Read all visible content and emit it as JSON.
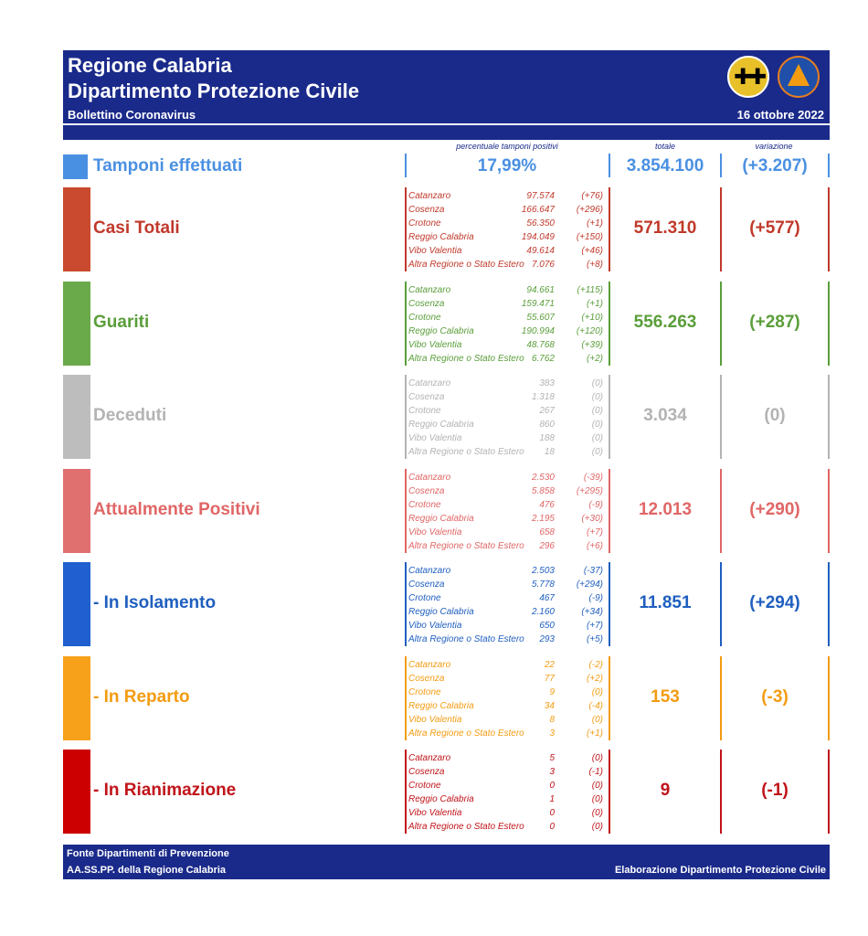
{
  "header": {
    "title_line1": "Regione Calabria",
    "title_line2": "Dipartimento Protezione Civile",
    "subtitle": "Bollettino Coronavirus",
    "date": "16 ottobre 2022",
    "logo_region_name": "regione-calabria-logo",
    "logo_pc_text": "PROTEZIONE CIVILE"
  },
  "column_headers": {
    "percent": "percentuale tamponi positivi",
    "total": "totale",
    "change": "variazione"
  },
  "tamponi": {
    "label": "Tamponi effettuati",
    "percent": "17,99%",
    "total": "3.854.100",
    "change": "(+3.207)",
    "color": "#4a90e2"
  },
  "rows": [
    {
      "label": "Casi Totali",
      "color": "#c0392b",
      "swatch": "#c94a2e",
      "total": "571.310",
      "change": "(+577)",
      "provinces": [
        {
          "name": "Catanzaro",
          "value": "97.574",
          "delta": "(+76)"
        },
        {
          "name": "Cosenza",
          "value": "166.647",
          "delta": "(+296)"
        },
        {
          "name": "Crotone",
          "value": "56.350",
          "delta": "(+1)"
        },
        {
          "name": "Reggio Calabria",
          "value": "194.049",
          "delta": "(+150)"
        },
        {
          "name": "Vibo Valentia",
          "value": "49.614",
          "delta": "(+46)"
        },
        {
          "name": "Altra Regione o Stato Estero",
          "value": "7.076",
          "delta": "(+8)"
        }
      ]
    },
    {
      "label": "Guariti",
      "color": "#5a9e3a",
      "swatch": "#6aaa4a",
      "total": "556.263",
      "change": "(+287)",
      "provinces": [
        {
          "name": "Catanzaro",
          "value": "94.661",
          "delta": "(+115)"
        },
        {
          "name": "Cosenza",
          "value": "159.471",
          "delta": "(+1)"
        },
        {
          "name": "Crotone",
          "value": "55.607",
          "delta": "(+10)"
        },
        {
          "name": "Reggio Calabria",
          "value": "190.994",
          "delta": "(+120)"
        },
        {
          "name": "Vibo Valentia",
          "value": "48.768",
          "delta": "(+39)"
        },
        {
          "name": "Altra Regione o Stato Estero",
          "value": "6.762",
          "delta": "(+2)"
        }
      ]
    },
    {
      "label": "Deceduti",
      "color": "#b3b3b3",
      "swatch": "#bdbdbd",
      "total": "3.034",
      "change": "(0)",
      "provinces": [
        {
          "name": "Catanzaro",
          "value": "383",
          "delta": "(0)"
        },
        {
          "name": "Cosenza",
          "value": "1.318",
          "delta": "(0)"
        },
        {
          "name": "Crotone",
          "value": "267",
          "delta": "(0)"
        },
        {
          "name": "Reggio Calabria",
          "value": "860",
          "delta": "(0)"
        },
        {
          "name": "Vibo Valentia",
          "value": "188",
          "delta": "(0)"
        },
        {
          "name": "Altra Regione o Stato Estero",
          "value": "18",
          "delta": "(0)"
        }
      ]
    },
    {
      "label": "Attualmente Positivi",
      "color": "#e06666",
      "swatch": "#e07070",
      "total": "12.013",
      "change": "(+290)",
      "provinces": [
        {
          "name": "Catanzaro",
          "value": "2.530",
          "delta": "(-39)"
        },
        {
          "name": "Cosenza",
          "value": "5.858",
          "delta": "(+295)"
        },
        {
          "name": "Crotone",
          "value": "476",
          "delta": "(-9)"
        },
        {
          "name": "Reggio Calabria",
          "value": "2.195",
          "delta": "(+30)"
        },
        {
          "name": "Vibo Valentia",
          "value": "658",
          "delta": "(+7)"
        },
        {
          "name": "Altra Regione o Stato Estero",
          "value": "296",
          "delta": "(+6)"
        }
      ]
    },
    {
      "label": " - In Isolamento",
      "color": "#1f5fbf",
      "swatch": "#1f5fcf",
      "total": "11.851",
      "change": "(+294)",
      "provinces": [
        {
          "name": "Catanzaro",
          "value": "2.503",
          "delta": "(-37)"
        },
        {
          "name": "Cosenza",
          "value": "5.778",
          "delta": "(+294)"
        },
        {
          "name": "Crotone",
          "value": "467",
          "delta": "(-9)"
        },
        {
          "name": "Reggio Calabria",
          "value": "2.160",
          "delta": "(+34)"
        },
        {
          "name": "Vibo Valentia",
          "value": "650",
          "delta": "(+7)"
        },
        {
          "name": "Altra Regione o Stato Estero",
          "value": "293",
          "delta": "(+5)"
        }
      ]
    },
    {
      "label": " - In Reparto",
      "color": "#f39c12",
      "swatch": "#f7a11a",
      "total": "153",
      "change": "(-3)",
      "provinces": [
        {
          "name": "Catanzaro",
          "value": "22",
          "delta": "(-2)"
        },
        {
          "name": "Cosenza",
          "value": "77",
          "delta": "(+2)"
        },
        {
          "name": "Crotone",
          "value": "9",
          "delta": "(0)"
        },
        {
          "name": "Reggio Calabria",
          "value": "34",
          "delta": "(-4)"
        },
        {
          "name": "Vibo Valentia",
          "value": "8",
          "delta": "(0)"
        },
        {
          "name": "Altra Regione o Stato Estero",
          "value": "3",
          "delta": "(+1)"
        }
      ]
    },
    {
      "label": " - In Rianimazione",
      "color": "#c0141a",
      "swatch": "#cc0000",
      "total": "9",
      "change": "(-1)",
      "provinces": [
        {
          "name": "Catanzaro",
          "value": "5",
          "delta": "(0)"
        },
        {
          "name": "Cosenza",
          "value": "3",
          "delta": "(-1)"
        },
        {
          "name": "Crotone",
          "value": "0",
          "delta": "(0)"
        },
        {
          "name": "Reggio Calabria",
          "value": "1",
          "delta": "(0)"
        },
        {
          "name": "Vibo Valentia",
          "value": "0",
          "delta": "(0)"
        },
        {
          "name": "Altra Regione o Stato Estero",
          "value": "0",
          "delta": "(0)"
        }
      ]
    }
  ],
  "footer": {
    "source_line1": "Fonte Dipartimenti di Prevenzione",
    "source_line2": "AA.SS.PP.  della Regione Calabria",
    "credit": "Elaborazione Dipartimento Protezione Civile"
  }
}
